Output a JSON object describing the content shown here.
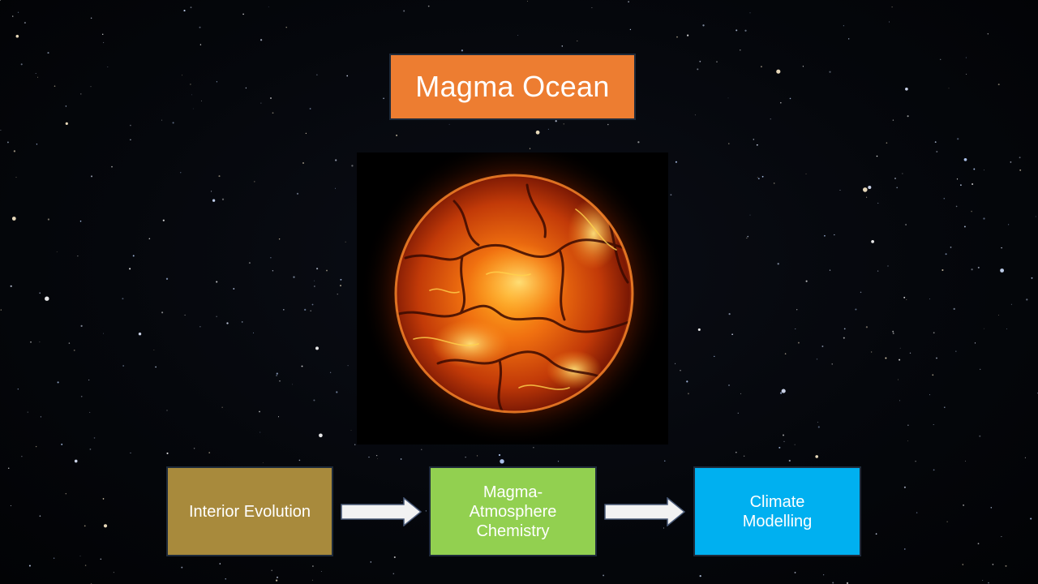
{
  "slide": {
    "title": "Magma Ocean",
    "title_color": "#ED7D31",
    "steps": [
      {
        "lines": [
          "Interior Evolution"
        ],
        "color": "#A88A3C"
      },
      {
        "lines": [
          "Magma-",
          "Atmosphere",
          "Chemistry"
        ],
        "color": "#92D050"
      },
      {
        "lines": [
          "Climate",
          "Modelling"
        ],
        "color": "#00B0F0"
      }
    ],
    "arrow_color": "#F2F2F2"
  }
}
